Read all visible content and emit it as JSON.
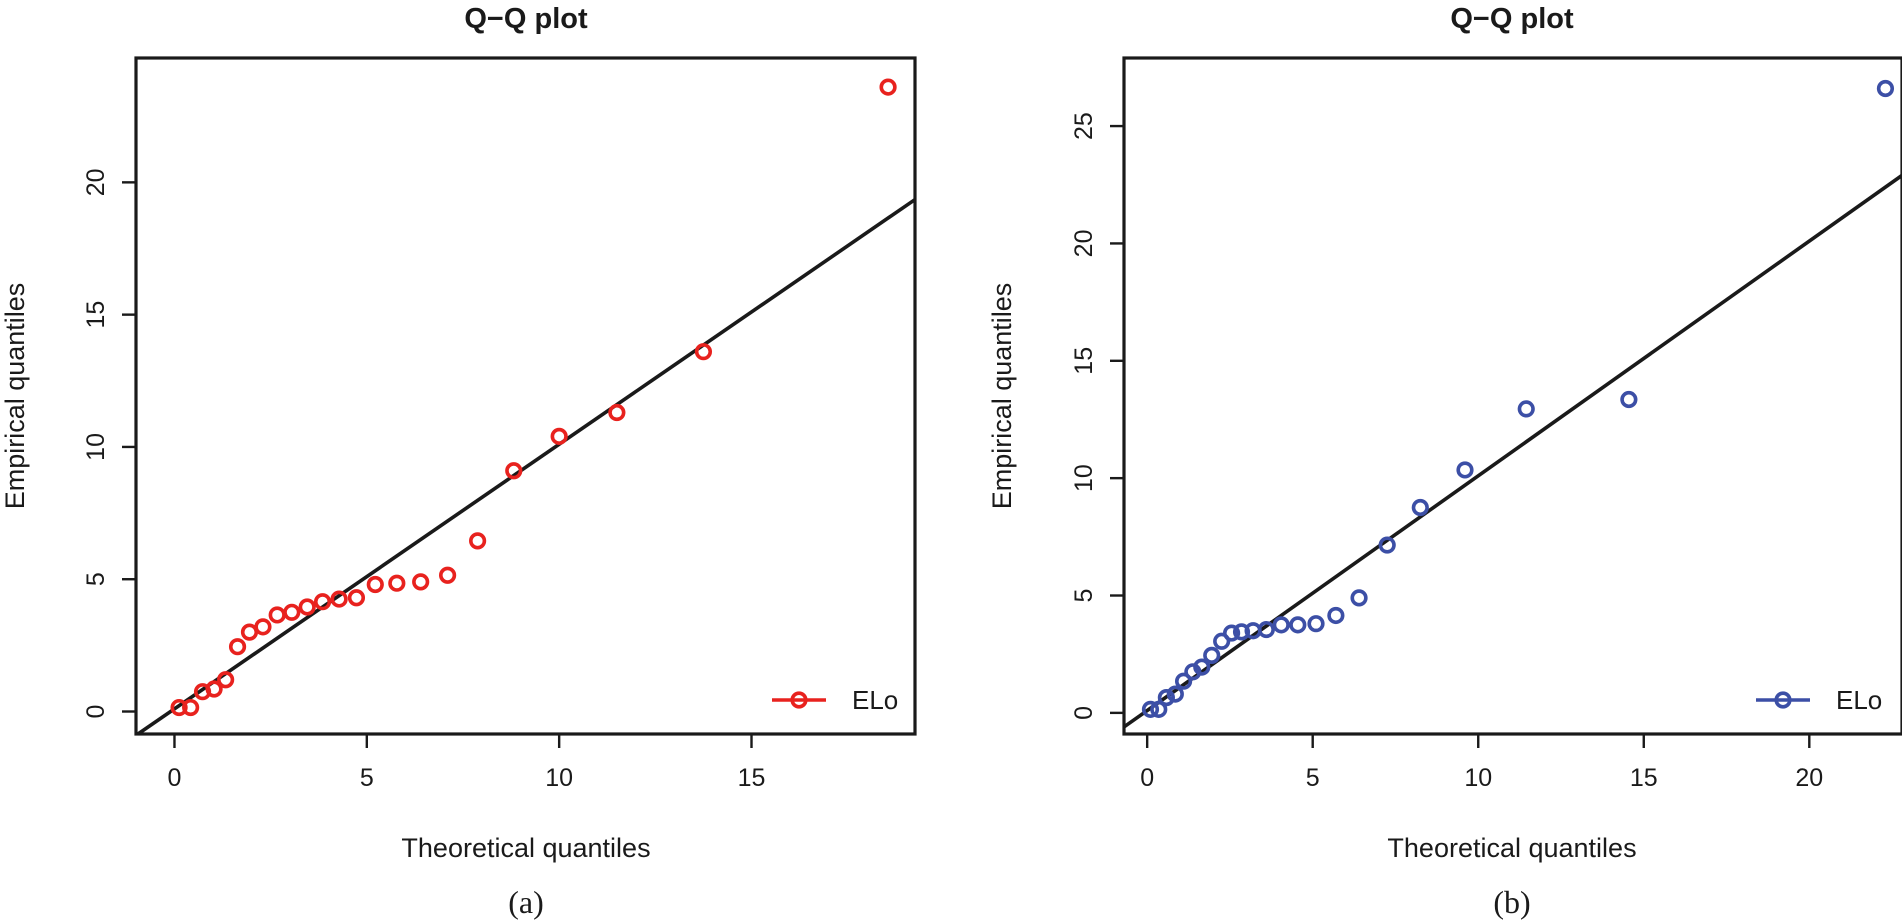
{
  "chart_data": [
    {
      "type": "scatter",
      "panel_label": "(a)",
      "title": "Q−Q plot",
      "xlabel": "Theoretical quantiles",
      "ylabel": "Empirical quantiles",
      "xlim": [
        -1.0,
        19.25
      ],
      "ylim": [
        -0.85,
        24.7
      ],
      "x_ticks": [
        0,
        5,
        10,
        15
      ],
      "x_tick_labels": [
        "0",
        "5",
        "10",
        "15"
      ],
      "y_ticks": [
        0,
        5,
        10,
        15,
        20
      ],
      "y_tick_labels": [
        "0",
        "5",
        "10",
        "15",
        "20"
      ],
      "reference_line": {
        "intercept": 0.1,
        "slope": 1.0
      },
      "series": [
        {
          "name": "ELo",
          "color": "#e8221e",
          "marker": "open-circle",
          "x": [
            0.12,
            0.42,
            0.73,
            1.03,
            1.33,
            1.64,
            1.95,
            2.3,
            2.67,
            3.05,
            3.45,
            3.85,
            4.28,
            4.73,
            5.22,
            5.78,
            6.4,
            7.1,
            7.88,
            8.82,
            10.0,
            11.5,
            13.75,
            18.55
          ],
          "y": [
            0.15,
            0.15,
            0.75,
            0.85,
            1.2,
            2.45,
            3.0,
            3.2,
            3.65,
            3.75,
            3.95,
            4.15,
            4.25,
            4.3,
            4.8,
            4.85,
            4.9,
            5.15,
            6.45,
            9.1,
            10.4,
            11.3,
            13.6,
            23.6
          ]
        }
      ],
      "legend": {
        "position": "bottom-right",
        "entries": [
          "ELo"
        ]
      }
    },
    {
      "type": "scatter",
      "panel_label": "(b)",
      "title": "Q−Q plot",
      "xlabel": "Theoretical quantiles",
      "ylabel": "Empirical quantiles",
      "xlim": [
        -0.7,
        22.8
      ],
      "ylim": [
        -0.9,
        27.9
      ],
      "x_ticks": [
        0,
        5,
        10,
        15,
        20
      ],
      "x_tick_labels": [
        "0",
        "5",
        "10",
        "15",
        "20"
      ],
      "y_ticks": [
        0,
        5,
        10,
        15,
        20,
        25
      ],
      "y_tick_labels": [
        "0",
        "5",
        "10",
        "15",
        "20",
        "25"
      ],
      "reference_line": {
        "intercept": 0.1,
        "slope": 1.0
      },
      "series": [
        {
          "name": "ELo",
          "color": "#3c4fa6",
          "marker": "open-circle",
          "x": [
            0.1,
            0.35,
            0.58,
            0.85,
            1.1,
            1.38,
            1.65,
            1.95,
            2.25,
            2.55,
            2.85,
            3.2,
            3.6,
            4.05,
            4.55,
            5.1,
            5.7,
            6.4,
            7.25,
            8.25,
            9.6,
            11.45,
            14.55,
            22.3
          ],
          "y": [
            0.15,
            0.15,
            0.65,
            0.8,
            1.35,
            1.75,
            1.95,
            2.45,
            3.05,
            3.4,
            3.45,
            3.5,
            3.55,
            3.75,
            3.75,
            3.8,
            4.15,
            4.9,
            7.15,
            8.75,
            10.35,
            12.95,
            13.35,
            26.6
          ]
        }
      ],
      "legend": {
        "position": "bottom-right",
        "entries": [
          "ELo"
        ]
      }
    }
  ]
}
